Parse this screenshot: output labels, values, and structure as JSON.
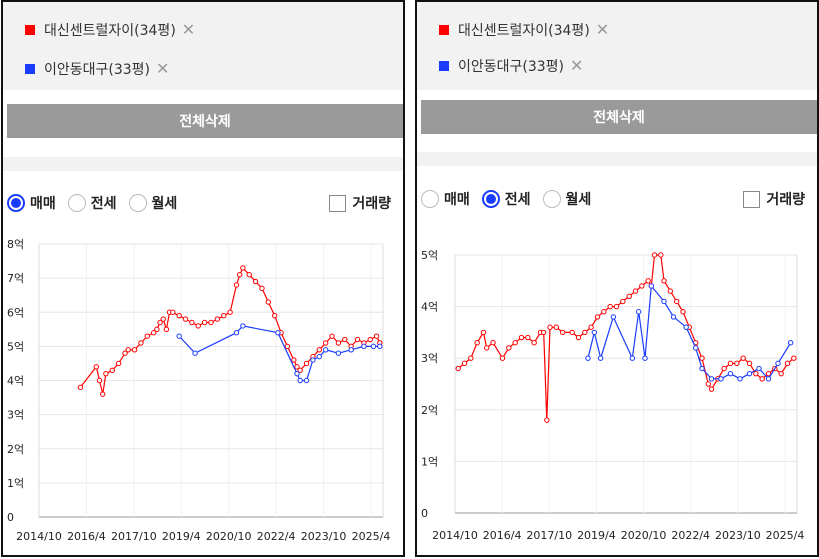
{
  "panels": [
    {
      "tags": [
        {
          "label": "대신센트럴자이(34평)",
          "color": "#ff0000"
        },
        {
          "label": "이안동대구(33평)",
          "color": "#1a3cff"
        }
      ],
      "clear_label": "전체삭제",
      "modes": [
        {
          "label": "매매",
          "selected": true
        },
        {
          "label": "전세",
          "selected": false
        },
        {
          "label": "월세",
          "selected": false
        }
      ],
      "volume_label": "거래량",
      "volume_checked": false
    },
    {
      "tags": [
        {
          "label": "대신센트럴자이(34평)",
          "color": "#ff0000"
        },
        {
          "label": "이안동대구(33평)",
          "color": "#1a3cff"
        }
      ],
      "clear_label": "전체삭제",
      "modes": [
        {
          "label": "매매",
          "selected": false
        },
        {
          "label": "전세",
          "selected": true
        },
        {
          "label": "월세",
          "selected": false
        }
      ],
      "volume_label": "거래량",
      "volume_checked": false
    }
  ],
  "close_glyph": "✕",
  "chart_data": [
    {
      "type": "line",
      "mode": "매매",
      "y_tick_labels": [
        "0",
        "1억",
        "2억",
        "3억",
        "4억",
        "5억",
        "6억",
        "7억",
        "8억"
      ],
      "ylim": [
        0,
        8
      ],
      "x_tick_labels": [
        "2014/10",
        "2016/4",
        "2017/10",
        "2019/4",
        "2020/10",
        "2022/4",
        "2023/10",
        "2025/4"
      ],
      "xlim": [
        2014.8,
        2025.6
      ],
      "grid": true,
      "series": [
        {
          "name": "대신센트럴자이(34평)",
          "color": "#ff0000",
          "points": [
            [
              2016.1,
              3.8
            ],
            [
              2016.6,
              4.4
            ],
            [
              2016.7,
              4.0
            ],
            [
              2016.8,
              3.6
            ],
            [
              2016.9,
              4.2
            ],
            [
              2017.1,
              4.3
            ],
            [
              2017.3,
              4.5
            ],
            [
              2017.5,
              4.8
            ],
            [
              2017.6,
              4.9
            ],
            [
              2017.8,
              4.9
            ],
            [
              2018.0,
              5.1
            ],
            [
              2018.2,
              5.3
            ],
            [
              2018.4,
              5.4
            ],
            [
              2018.5,
              5.5
            ],
            [
              2018.6,
              5.7
            ],
            [
              2018.7,
              5.8
            ],
            [
              2018.8,
              5.5
            ],
            [
              2018.9,
              6.0
            ],
            [
              2019.0,
              6.0
            ],
            [
              2019.2,
              5.9
            ],
            [
              2019.4,
              5.8
            ],
            [
              2019.6,
              5.7
            ],
            [
              2019.8,
              5.6
            ],
            [
              2020.0,
              5.7
            ],
            [
              2020.2,
              5.7
            ],
            [
              2020.4,
              5.8
            ],
            [
              2020.6,
              5.9
            ],
            [
              2020.8,
              6.0
            ],
            [
              2021.0,
              6.8
            ],
            [
              2021.1,
              7.1
            ],
            [
              2021.2,
              7.3
            ],
            [
              2021.4,
              7.1
            ],
            [
              2021.6,
              6.9
            ],
            [
              2021.8,
              6.7
            ],
            [
              2022.0,
              6.3
            ],
            [
              2022.2,
              5.9
            ],
            [
              2022.4,
              5.4
            ],
            [
              2022.6,
              5.0
            ],
            [
              2022.8,
              4.6
            ],
            [
              2022.9,
              4.4
            ],
            [
              2023.0,
              4.3
            ],
            [
              2023.2,
              4.5
            ],
            [
              2023.4,
              4.7
            ],
            [
              2023.6,
              4.9
            ],
            [
              2023.8,
              5.1
            ],
            [
              2024.0,
              5.3
            ],
            [
              2024.2,
              5.1
            ],
            [
              2024.4,
              5.2
            ],
            [
              2024.6,
              5.0
            ],
            [
              2024.8,
              5.2
            ],
            [
              2025.0,
              5.1
            ],
            [
              2025.2,
              5.2
            ],
            [
              2025.4,
              5.3
            ],
            [
              2025.5,
              5.1
            ]
          ]
        },
        {
          "name": "이안동대구(33평)",
          "color": "#1a3cff",
          "points": [
            [
              2019.2,
              5.3
            ],
            [
              2019.7,
              4.8
            ],
            [
              2021.0,
              5.4
            ],
            [
              2021.2,
              5.6
            ],
            [
              2022.3,
              5.4
            ],
            [
              2022.9,
              4.2
            ],
            [
              2023.0,
              4.0
            ],
            [
              2023.2,
              4.0
            ],
            [
              2023.4,
              4.6
            ],
            [
              2023.6,
              4.7
            ],
            [
              2023.8,
              4.9
            ],
            [
              2024.2,
              4.8
            ],
            [
              2024.6,
              4.9
            ],
            [
              2025.0,
              5.0
            ],
            [
              2025.3,
              5.0
            ],
            [
              2025.5,
              5.0
            ]
          ]
        }
      ]
    },
    {
      "type": "line",
      "mode": "전세",
      "y_tick_labels": [
        "0",
        "1억",
        "2억",
        "3억",
        "4억",
        "5억"
      ],
      "ylim": [
        0,
        5
      ],
      "x_tick_labels": [
        "2014/10",
        "2016/4",
        "2017/10",
        "2019/4",
        "2020/10",
        "2022/4",
        "2023/10",
        "2025/4"
      ],
      "xlim": [
        2014.8,
        2025.6
      ],
      "grid": true,
      "series": [
        {
          "name": "대신센트럴자이(34평)",
          "color": "#ff0000",
          "points": [
            [
              2014.9,
              2.8
            ],
            [
              2015.1,
              2.9
            ],
            [
              2015.3,
              3.0
            ],
            [
              2015.5,
              3.3
            ],
            [
              2015.7,
              3.5
            ],
            [
              2015.8,
              3.2
            ],
            [
              2016.0,
              3.3
            ],
            [
              2016.3,
              3.0
            ],
            [
              2016.5,
              3.2
            ],
            [
              2016.7,
              3.3
            ],
            [
              2016.9,
              3.4
            ],
            [
              2017.1,
              3.4
            ],
            [
              2017.3,
              3.3
            ],
            [
              2017.5,
              3.5
            ],
            [
              2017.6,
              3.5
            ],
            [
              2017.7,
              1.8
            ],
            [
              2017.8,
              3.6
            ],
            [
              2018.0,
              3.6
            ],
            [
              2018.2,
              3.5
            ],
            [
              2018.5,
              3.5
            ],
            [
              2018.7,
              3.4
            ],
            [
              2018.9,
              3.5
            ],
            [
              2019.1,
              3.6
            ],
            [
              2019.3,
              3.8
            ],
            [
              2019.5,
              3.9
            ],
            [
              2019.7,
              4.0
            ],
            [
              2019.9,
              4.0
            ],
            [
              2020.1,
              4.1
            ],
            [
              2020.3,
              4.2
            ],
            [
              2020.5,
              4.3
            ],
            [
              2020.7,
              4.4
            ],
            [
              2020.9,
              4.5
            ],
            [
              2021.0,
              4.4
            ],
            [
              2021.1,
              5.0
            ],
            [
              2021.3,
              5.0
            ],
            [
              2021.4,
              4.5
            ],
            [
              2021.6,
              4.3
            ],
            [
              2021.8,
              4.1
            ],
            [
              2022.0,
              3.9
            ],
            [
              2022.2,
              3.6
            ],
            [
              2022.4,
              3.3
            ],
            [
              2022.6,
              3.0
            ],
            [
              2022.8,
              2.5
            ],
            [
              2022.9,
              2.4
            ],
            [
              2023.1,
              2.6
            ],
            [
              2023.3,
              2.8
            ],
            [
              2023.5,
              2.9
            ],
            [
              2023.7,
              2.9
            ],
            [
              2023.9,
              3.0
            ],
            [
              2024.1,
              2.9
            ],
            [
              2024.3,
              2.7
            ],
            [
              2024.5,
              2.6
            ],
            [
              2024.7,
              2.7
            ],
            [
              2024.9,
              2.8
            ],
            [
              2025.1,
              2.7
            ],
            [
              2025.3,
              2.9
            ],
            [
              2025.5,
              3.0
            ]
          ]
        },
        {
          "name": "이안동대구(33평)",
          "color": "#1a3cff",
          "points": [
            [
              2019.0,
              3.0
            ],
            [
              2019.2,
              3.5
            ],
            [
              2019.4,
              3.0
            ],
            [
              2019.8,
              3.8
            ],
            [
              2020.4,
              3.0
            ],
            [
              2020.6,
              3.9
            ],
            [
              2020.8,
              3.0
            ],
            [
              2021.0,
              4.4
            ],
            [
              2021.4,
              4.1
            ],
            [
              2021.7,
              3.8
            ],
            [
              2022.1,
              3.6
            ],
            [
              2022.4,
              3.2
            ],
            [
              2022.6,
              2.8
            ],
            [
              2022.9,
              2.6
            ],
            [
              2023.2,
              2.6
            ],
            [
              2023.5,
              2.7
            ],
            [
              2023.8,
              2.6
            ],
            [
              2024.1,
              2.7
            ],
            [
              2024.4,
              2.8
            ],
            [
              2024.7,
              2.6
            ],
            [
              2025.0,
              2.9
            ],
            [
              2025.4,
              3.3
            ]
          ]
        }
      ]
    }
  ]
}
